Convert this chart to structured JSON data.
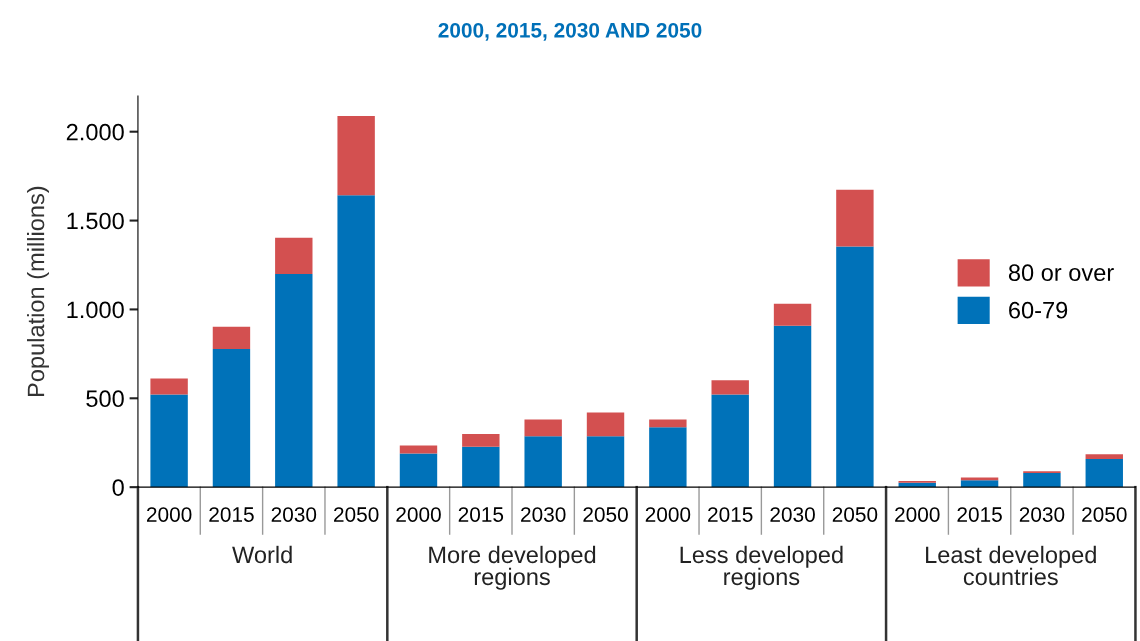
{
  "chart_data": {
    "type": "bar",
    "title": "2000, 2015, 2030 AND 2050",
    "ylabel": "Population (millions)",
    "categories": [
      "2000",
      "2015",
      "2030",
      "2050",
      "2000",
      "2015",
      "2030",
      "2050",
      "2000",
      "2015",
      "2030",
      "2050",
      "2000",
      "2015",
      "2030",
      "2050"
    ],
    "annotations": [
      "World",
      "More developed regions",
      "Less developed regions",
      "Least developed countries"
    ],
    "stacked": true,
    "series": [
      {
        "name": "60-79",
        "color": "#0072b9",
        "values": [
          521,
          778,
          1199,
          1643,
          190,
          227,
          287,
          287,
          337,
          521,
          908,
          1354,
          25,
          39,
          79,
          158
        ]
      },
      {
        "name": "80 or over",
        "color": "#d35050",
        "values": [
          90,
          124,
          204,
          446,
          44,
          72,
          93,
          133,
          44,
          80,
          124,
          319,
          9,
          15,
          11,
          27
        ]
      }
    ],
    "ylim": [
      0,
      2200
    ],
    "yticks": [
      0,
      500,
      {
        "value": 1000,
        "label": "1.000"
      },
      {
        "value": 1500,
        "label": "1.500"
      },
      {
        "value": 2000,
        "label": "2.000"
      }
    ],
    "grid": false,
    "legend": "right"
  }
}
